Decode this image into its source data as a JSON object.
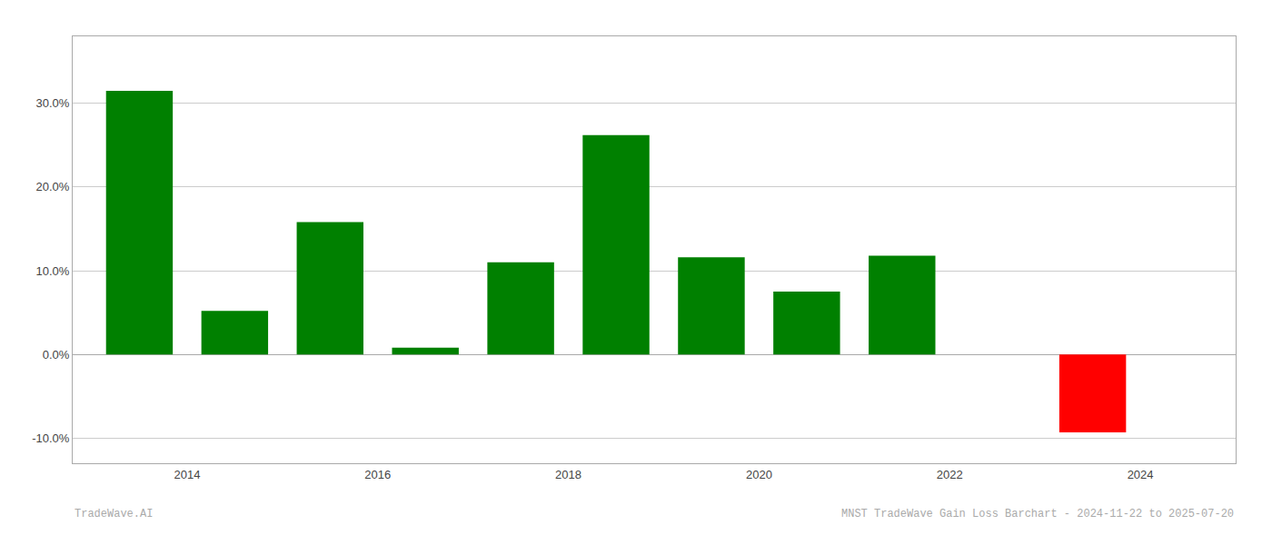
{
  "chart_data": {
    "type": "bar",
    "x": [
      2013.5,
      2014.5,
      2015.5,
      2016.5,
      2017.5,
      2018.5,
      2019.5,
      2020.5,
      2021.5,
      2023.5
    ],
    "values": [
      0.315,
      0.052,
      0.158,
      0.008,
      0.11,
      0.262,
      0.116,
      0.075,
      0.118,
      -0.093
    ],
    "colors": [
      "#008000",
      "#008000",
      "#008000",
      "#008000",
      "#008000",
      "#008000",
      "#008000",
      "#008000",
      "#008000",
      "#ff0000"
    ],
    "xlim": [
      2012.8,
      2025.0
    ],
    "xticks": [
      2014,
      2016,
      2018,
      2020,
      2022,
      2024
    ],
    "ylim": [
      -0.13,
      0.38
    ],
    "yticks": [
      {
        "value": -0.1,
        "label": "-10.0%"
      },
      {
        "value": 0.0,
        "label": "0.0%"
      },
      {
        "value": 0.1,
        "label": "10.0%"
      },
      {
        "value": 0.2,
        "label": "20.0%"
      },
      {
        "value": 0.3,
        "label": "30.0%"
      }
    ],
    "grid": true,
    "annotations": [
      "TradeWave.AI",
      "MNST TradeWave Gain Loss Barchart - 2024-11-22 to 2025-07-20"
    ]
  }
}
